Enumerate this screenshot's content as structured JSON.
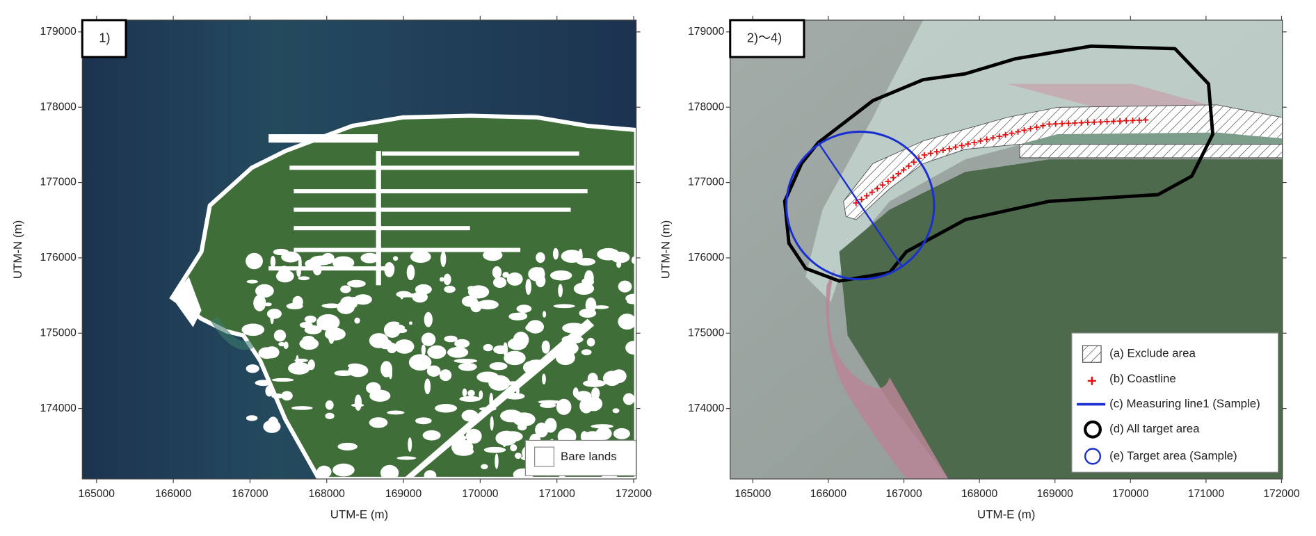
{
  "chart_data": [
    {
      "type": "map",
      "panel_label": "1)",
      "xlabel": "UTM-E (m)",
      "ylabel": "UTM-N (m)",
      "xlim": [
        164814,
        172033
      ],
      "ylim": [
        173065,
        179156
      ],
      "xticks": [
        165000,
        166000,
        167000,
        168000,
        169000,
        170000,
        171000,
        172000
      ],
      "yticks": [
        174000,
        175000,
        176000,
        177000,
        178000,
        179000
      ],
      "legend": [
        "Bare lands"
      ]
    },
    {
      "type": "map",
      "panel_label": "2)～4)",
      "xlabel": "UTM-E (m)",
      "ylabel": "UTM-N (m)",
      "xlim": [
        164700,
        172011
      ],
      "ylim": [
        173065,
        179156
      ],
      "xticks": [
        165000,
        166000,
        167000,
        168000,
        169000,
        170000,
        171000,
        172000
      ],
      "yticks": [
        174000,
        175000,
        176000,
        177000,
        178000,
        179000
      ],
      "legend": [
        "(a) Exclude area",
        "(b) Coastline",
        "(c) Measuring line1 (Sample)",
        "(d) All target area",
        "(e) Target area (Sample)"
      ]
    }
  ]
}
